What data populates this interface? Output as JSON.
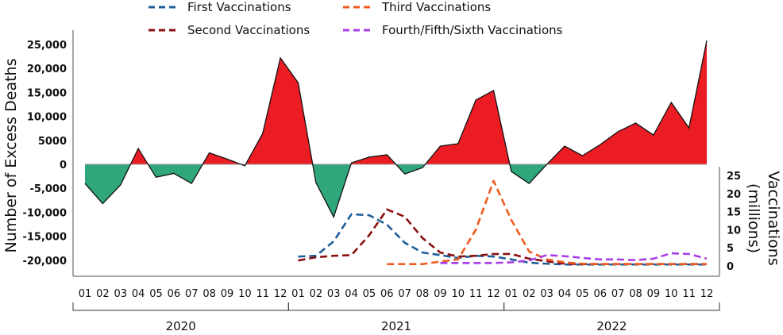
{
  "chart_data": {
    "type": "area+line",
    "ylabel_left": "Number of Excess Deaths",
    "ylabel_right": [
      "Vaccinations",
      "(millions)"
    ],
    "ylim_left": [
      -20000,
      25000
    ],
    "yticks_left": [
      "25,000",
      "20,000",
      "15,000",
      "10,000",
      "5000",
      "0",
      "-5,000",
      "-10,000",
      "-15,000",
      "-20,000"
    ],
    "yticks_left_values": [
      25000,
      20000,
      15000,
      10000,
      5000,
      0,
      -5000,
      -10000,
      -15000,
      -20000
    ],
    "ylim_right": [
      0,
      25
    ],
    "yticks_right": [
      "25",
      "20",
      "15",
      "10",
      "5",
      "0"
    ],
    "years": [
      "2020",
      "2021",
      "2022"
    ],
    "months": [
      "01",
      "02",
      "03",
      "04",
      "05",
      "06",
      "07",
      "08",
      "09",
      "10",
      "11",
      "12"
    ],
    "colors": {
      "positive": "#ec1c24",
      "negative": "#2fa77a",
      "first": "#1f5f99",
      "second": "#8b0f0f",
      "third": "#f05a1e",
      "fourth": "#a83ee8"
    },
    "excess_deaths": [
      -4000,
      -8200,
      -4300,
      3300,
      -2700,
      -1900,
      -4000,
      2400,
      1100,
      -300,
      6400,
      22200,
      17000,
      -3800,
      -11000,
      300,
      1500,
      2000,
      -2000,
      -700,
      3800,
      4300,
      13400,
      15400,
      -1500,
      -4000,
      0,
      3800,
      1800,
      4100,
      6800,
      8600,
      6100,
      12900,
      7600,
      25800
    ],
    "series": [
      {
        "name": "First Vaccinations",
        "key": "first",
        "start": "2021-01",
        "values": [
          2.6,
          2.8,
          6.8,
          14.3,
          14,
          11.4,
          6.4,
          3.7,
          3,
          2.2,
          2.8,
          2.6,
          1.8,
          0.9,
          0.6,
          0.4,
          0.4,
          0.4,
          0.4,
          0.4,
          0.4,
          0.4,
          0.4,
          0.4
        ]
      },
      {
        "name": "Second Vaccinations",
        "key": "second",
        "start": "2021-01",
        "values": [
          1.5,
          2.4,
          2.8,
          3,
          8.5,
          15.6,
          13.6,
          7.7,
          3.7,
          2.6,
          2.8,
          3.3,
          3.3,
          2,
          1.3,
          0.6,
          0.5,
          0.5,
          0.5,
          0.5,
          0.5,
          0.5,
          0.5,
          0.5
        ]
      },
      {
        "name": "Third Vaccinations",
        "key": "third",
        "start": "2021-06",
        "values": [
          0.5,
          0.5,
          0.5,
          1.2,
          1.8,
          10,
          23.5,
          12.7,
          4,
          1.8,
          1,
          0.6,
          0.5,
          0.5,
          0.5,
          0.5,
          0.5,
          0.5,
          0.5
        ]
      },
      {
        "name": "Fourth/Fifth/Sixth Vaccinations",
        "key": "fourth",
        "start": "2021-09",
        "values": [
          0.8,
          0.8,
          0.8,
          0.8,
          1,
          1.5,
          3,
          2.7,
          2.2,
          1.8,
          1.8,
          1.6,
          2,
          3.5,
          3.3,
          2
        ]
      }
    ]
  }
}
